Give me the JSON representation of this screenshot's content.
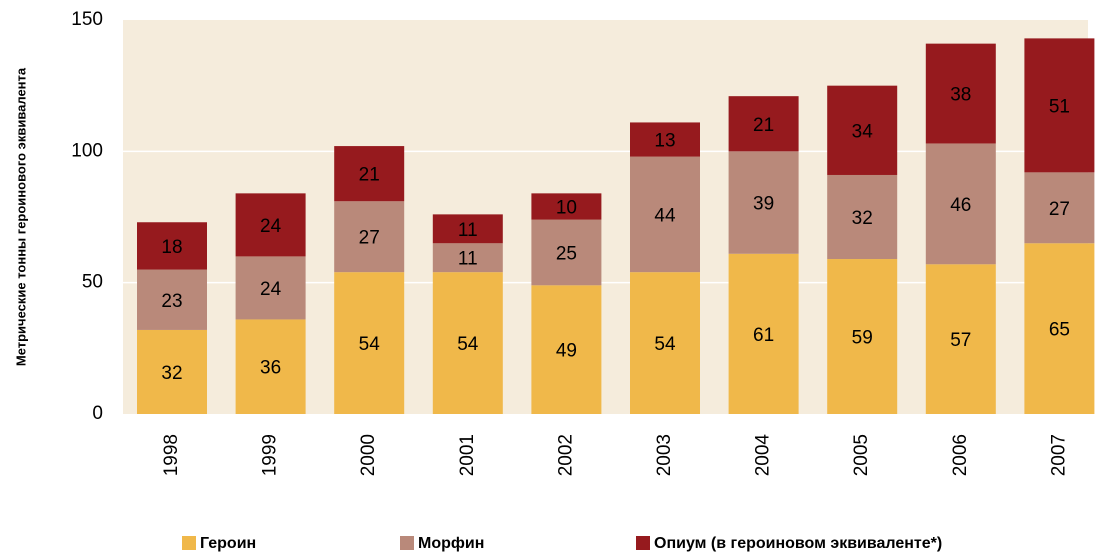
{
  "chart_data": {
    "type": "stacked_bar",
    "ylabel": "Метрические тонны героинового эквивалента",
    "categories": [
      "1998",
      "1999",
      "2000",
      "2001",
      "2002",
      "2003",
      "2004",
      "2005",
      "2006",
      "2007"
    ],
    "series": [
      {
        "name": "Героин",
        "color": "#f0b84a",
        "values": [
          32,
          36,
          54,
          54,
          49,
          54,
          61,
          59,
          57,
          65
        ]
      },
      {
        "name": "Морфин",
        "color": "#b9897a",
        "values": [
          23,
          24,
          27,
          11,
          25,
          44,
          39,
          32,
          46,
          27
        ]
      },
      {
        "name": "Опиум (в героиновом эквиваленте*)",
        "color": "#961a1e",
        "values": [
          18,
          24,
          21,
          11,
          10,
          13,
          21,
          34,
          38,
          51
        ]
      }
    ],
    "ylim": [
      0,
      150
    ],
    "yticks": [
      0,
      50,
      100,
      150
    ],
    "grid": true
  }
}
